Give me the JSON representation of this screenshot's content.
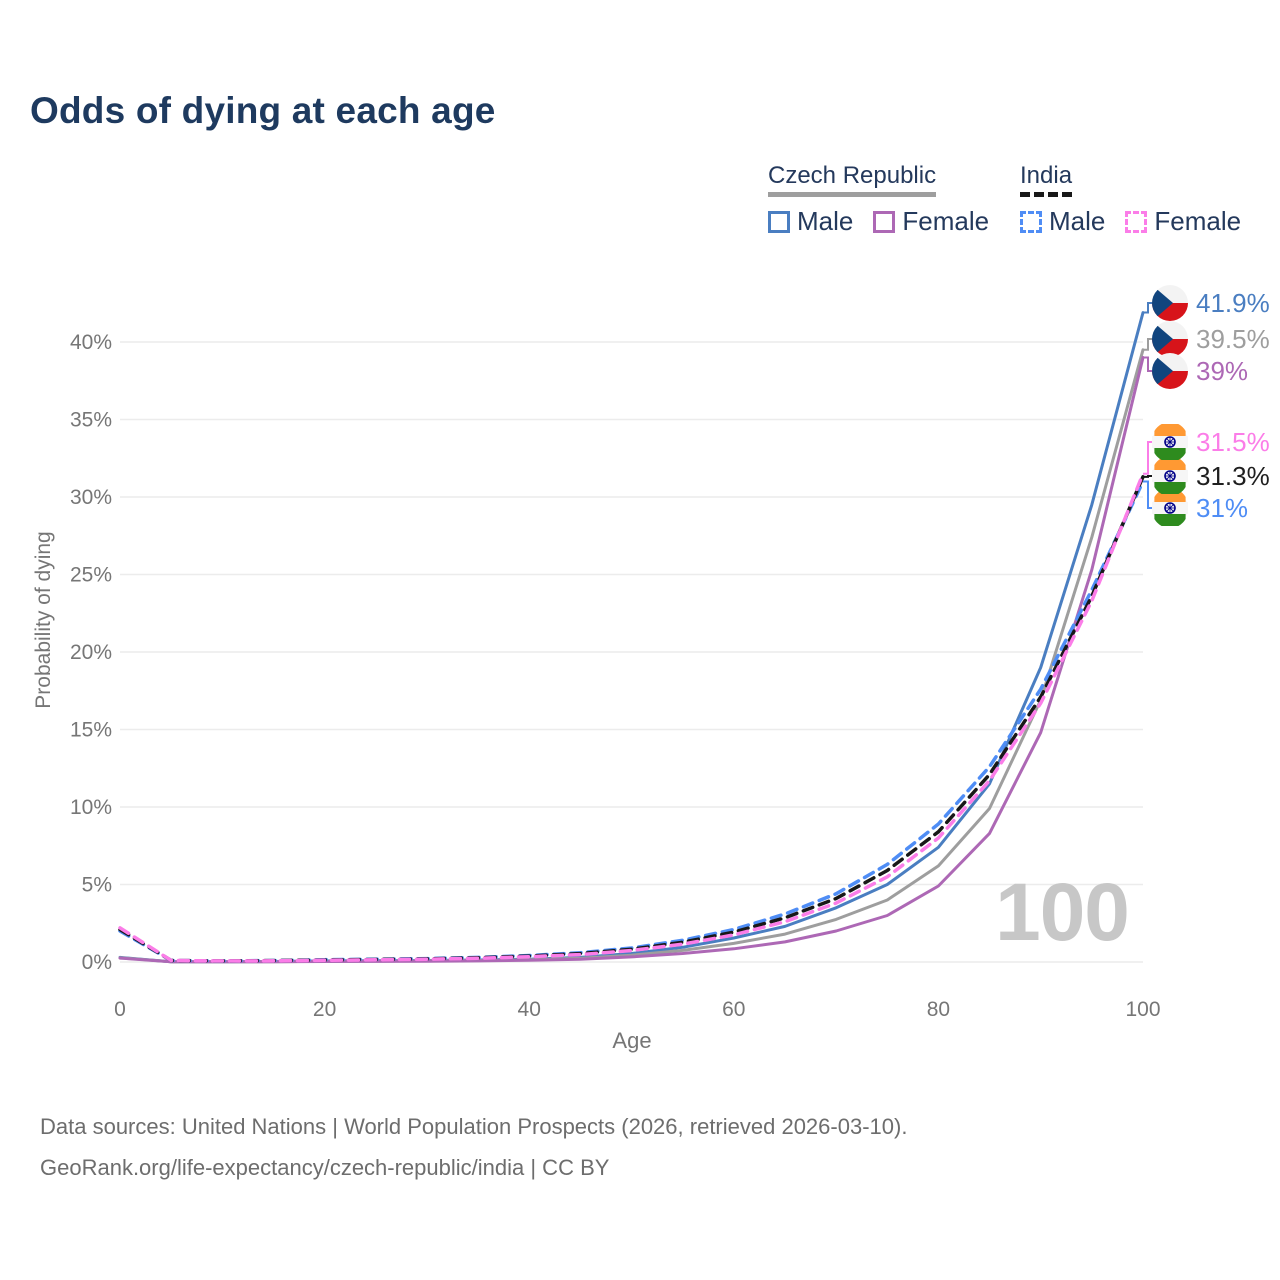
{
  "title": "Odds of dying at each age",
  "watermark": "100",
  "legend": {
    "groups": [
      {
        "key": "czech",
        "label": "Czech Republic",
        "underline_style": "solid",
        "underline_series": "cz_t",
        "items": [
          {
            "series": "cz_m",
            "label": "Male"
          },
          {
            "series": "cz_f",
            "label": "Female"
          }
        ]
      },
      {
        "key": "india",
        "label": "India",
        "underline_style": "dashed",
        "underline_series": "in_t",
        "items": [
          {
            "series": "in_m",
            "label": "Male"
          },
          {
            "series": "in_f",
            "label": "Female"
          }
        ]
      }
    ]
  },
  "chart_data": {
    "type": "line",
    "title": "Odds of dying at each age",
    "xlabel": "Age",
    "ylabel": "Probability of dying",
    "xlim": [
      0,
      100
    ],
    "ylim": [
      0,
      43
    ],
    "x_ticks": [
      0,
      20,
      40,
      60,
      80,
      100
    ],
    "y_ticks": [
      0,
      5,
      10,
      15,
      20,
      25,
      30,
      35,
      40
    ],
    "y_tick_suffix": "%",
    "grid": "horizontal",
    "ages": [
      0,
      5,
      10,
      15,
      20,
      25,
      30,
      35,
      40,
      45,
      50,
      55,
      60,
      65,
      70,
      75,
      80,
      85,
      90,
      95,
      100
    ],
    "series": [
      {
        "key": "cz_m",
        "country": "Czech Republic",
        "sex": "Male",
        "style": "solid",
        "color": "#4a7ec1",
        "flag": "cz",
        "end_label": "41.9%",
        "end_value": 41.9,
        "label_color": "#4a7ec1",
        "values": [
          0.3,
          0.02,
          0.01,
          0.03,
          0.07,
          0.09,
          0.1,
          0.13,
          0.18,
          0.3,
          0.55,
          0.95,
          1.55,
          2.3,
          3.5,
          5.0,
          7.4,
          11.5,
          19.0,
          29.5,
          41.9
        ]
      },
      {
        "key": "cz_t",
        "country": "Czech Republic",
        "sex": "",
        "style": "solid",
        "color": "#9e9e9e",
        "flag": "cz",
        "end_label": "39.5%",
        "end_value": 39.5,
        "label_color": "#9e9e9e",
        "values": [
          0.28,
          0.02,
          0.01,
          0.02,
          0.05,
          0.06,
          0.08,
          0.1,
          0.14,
          0.24,
          0.44,
          0.75,
          1.2,
          1.8,
          2.75,
          4.0,
          6.2,
          9.9,
          16.9,
          27.4,
          39.5
        ]
      },
      {
        "key": "cz_f",
        "country": "Czech Republic",
        "sex": "Female",
        "style": "solid",
        "color": "#ad68b5",
        "flag": "cz",
        "end_label": "39%",
        "end_value": 39.0,
        "label_color": "#ad68b5",
        "values": [
          0.25,
          0.01,
          0.01,
          0.02,
          0.03,
          0.04,
          0.05,
          0.07,
          0.11,
          0.18,
          0.33,
          0.55,
          0.85,
          1.3,
          2.0,
          3.0,
          4.9,
          8.3,
          14.8,
          25.3,
          39.0
        ]
      },
      {
        "key": "in_m",
        "country": "India",
        "sex": "Male",
        "style": "dashed",
        "color": "#4f8df5",
        "flag": "in",
        "end_label": "31%",
        "end_value": 31.0,
        "label_color": "#4f8df5",
        "values": [
          2.0,
          0.1,
          0.07,
          0.1,
          0.15,
          0.18,
          0.22,
          0.3,
          0.42,
          0.6,
          0.9,
          1.4,
          2.1,
          3.1,
          4.4,
          6.3,
          8.9,
          12.6,
          17.6,
          24.0,
          31.0
        ]
      },
      {
        "key": "in_t",
        "country": "India",
        "sex": "",
        "style": "dashed",
        "color": "#181818",
        "flag": "in",
        "end_label": "31.3%",
        "end_value": 31.3,
        "label_color": "#1f1f1f",
        "values": [
          2.1,
          0.1,
          0.07,
          0.09,
          0.13,
          0.16,
          0.2,
          0.27,
          0.38,
          0.54,
          0.82,
          1.27,
          1.93,
          2.85,
          4.1,
          5.9,
          8.4,
          12.1,
          17.1,
          23.6,
          31.3
        ]
      },
      {
        "key": "in_f",
        "country": "India",
        "sex": "Female",
        "style": "dashed",
        "color": "#fb7de8",
        "flag": "in",
        "end_label": "31.5%",
        "end_value": 31.5,
        "label_color": "#fb7de8",
        "values": [
          2.2,
          0.1,
          0.07,
          0.08,
          0.11,
          0.14,
          0.18,
          0.24,
          0.34,
          0.48,
          0.74,
          1.15,
          1.75,
          2.6,
          3.8,
          5.5,
          8.0,
          11.7,
          16.7,
          23.3,
          31.5
        ]
      }
    ]
  },
  "footer": {
    "line1": "Data sources: United Nations | World Population Prospects (2026, retrieved 2026-03-10).",
    "line2": "GeoRank.org/life-expectancy/czech-republic/india | CC BY"
  }
}
